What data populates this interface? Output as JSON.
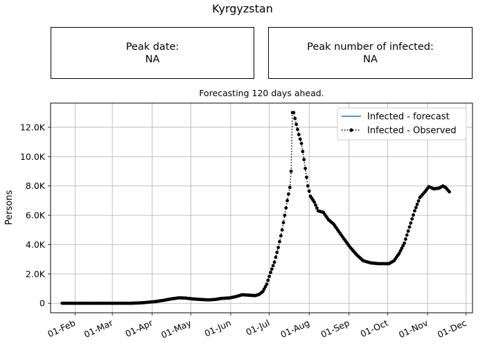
{
  "header": {
    "title": "Kyrgyzstan",
    "subtitle": "Forecasting 120 days ahead."
  },
  "cards": {
    "peak_date_label": "Peak date:",
    "peak_date_value": "NA",
    "peak_infected_label": "Peak number of infected:",
    "peak_infected_value": "NA"
  },
  "chart_data": {
    "type": "line",
    "ylabel": "Persons",
    "xlabel": "",
    "grid": true,
    "legend_placement": "top-right",
    "x_ticks": [
      {
        "label": "01-Feb",
        "date": "2020-02-01"
      },
      {
        "label": "01-Mar",
        "date": "2020-03-01"
      },
      {
        "label": "01-Apr",
        "date": "2020-04-01"
      },
      {
        "label": "01-May",
        "date": "2020-05-01"
      },
      {
        "label": "01-Jun",
        "date": "2020-06-01"
      },
      {
        "label": "01-Jul",
        "date": "2020-07-01"
      },
      {
        "label": "01-Aug",
        "date": "2020-08-01"
      },
      {
        "label": "01-Sep",
        "date": "2020-09-01"
      },
      {
        "label": "01-Oct",
        "date": "2020-10-01"
      },
      {
        "label": "01-Nov",
        "date": "2020-11-01"
      },
      {
        "label": "01-Dec",
        "date": "2020-12-01"
      }
    ],
    "y_ticks": [
      {
        "label": "0",
        "value": 0
      },
      {
        "label": "2.0K",
        "value": 2000
      },
      {
        "label": "4.0K",
        "value": 4000
      },
      {
        "label": "6.0K",
        "value": 6000
      },
      {
        "label": "8.0K",
        "value": 8000
      },
      {
        "label": "10.0K",
        "value": 10000
      },
      {
        "label": "12.0K",
        "value": 12000
      }
    ],
    "xlim": [
      "2020-01-13",
      "2020-12-06"
    ],
    "ylim": [
      -650,
      13650
    ],
    "series": [
      {
        "name": "Infected - forecast",
        "color": "#1f77b4",
        "style": "solid",
        "points": []
      },
      {
        "name": "Infected - Observed",
        "color": "#000000",
        "style": "dotted-with-markers",
        "points": [
          [
            "2020-01-22",
            0
          ],
          [
            "2020-02-01",
            0
          ],
          [
            "2020-02-15",
            0
          ],
          [
            "2020-03-01",
            0
          ],
          [
            "2020-03-15",
            0
          ],
          [
            "2020-03-22",
            20
          ],
          [
            "2020-03-28",
            60
          ],
          [
            "2020-04-04",
            120
          ],
          [
            "2020-04-10",
            200
          ],
          [
            "2020-04-16",
            300
          ],
          [
            "2020-04-22",
            370
          ],
          [
            "2020-04-27",
            350
          ],
          [
            "2020-05-02",
            300
          ],
          [
            "2020-05-08",
            260
          ],
          [
            "2020-05-15",
            230
          ],
          [
            "2020-05-20",
            260
          ],
          [
            "2020-05-25",
            330
          ],
          [
            "2020-05-31",
            360
          ],
          [
            "2020-06-05",
            450
          ],
          [
            "2020-06-10",
            580
          ],
          [
            "2020-06-15",
            550
          ],
          [
            "2020-06-20",
            520
          ],
          [
            "2020-06-23",
            600
          ],
          [
            "2020-06-26",
            800
          ],
          [
            "2020-06-29",
            1300
          ],
          [
            "2020-07-02",
            2100
          ],
          [
            "2020-07-05",
            2800
          ],
          [
            "2020-07-08",
            3800
          ],
          [
            "2020-07-11",
            5000
          ],
          [
            "2020-07-13",
            6000
          ],
          [
            "2020-07-15",
            7000
          ],
          [
            "2020-07-17",
            7900
          ],
          [
            "2020-07-18",
            9000
          ],
          [
            "2020-07-19",
            13000
          ],
          [
            "2020-07-20",
            13000
          ],
          [
            "2020-07-22",
            12200
          ],
          [
            "2020-07-24",
            11500
          ],
          [
            "2020-07-26",
            10900
          ],
          [
            "2020-07-28",
            9800
          ],
          [
            "2020-07-31",
            8000
          ],
          [
            "2020-08-02",
            7300
          ],
          [
            "2020-08-05",
            6900
          ],
          [
            "2020-08-08",
            6300
          ],
          [
            "2020-08-12",
            6200
          ],
          [
            "2020-08-16",
            5700
          ],
          [
            "2020-08-20",
            5400
          ],
          [
            "2020-08-24",
            4900
          ],
          [
            "2020-08-28",
            4400
          ],
          [
            "2020-09-02",
            3800
          ],
          [
            "2020-09-07",
            3300
          ],
          [
            "2020-09-12",
            2900
          ],
          [
            "2020-09-18",
            2750
          ],
          [
            "2020-09-24",
            2700
          ],
          [
            "2020-09-28",
            2700
          ],
          [
            "2020-10-02",
            2700
          ],
          [
            "2020-10-06",
            2900
          ],
          [
            "2020-10-10",
            3400
          ],
          [
            "2020-10-14",
            4100
          ],
          [
            "2020-10-18",
            5200
          ],
          [
            "2020-10-22",
            6300
          ],
          [
            "2020-10-26",
            7200
          ],
          [
            "2020-10-30",
            7600
          ],
          [
            "2020-11-02",
            7950
          ],
          [
            "2020-11-06",
            7800
          ],
          [
            "2020-11-10",
            7850
          ],
          [
            "2020-11-13",
            8000
          ],
          [
            "2020-11-15",
            7900
          ],
          [
            "2020-11-18",
            7600
          ]
        ]
      }
    ]
  }
}
